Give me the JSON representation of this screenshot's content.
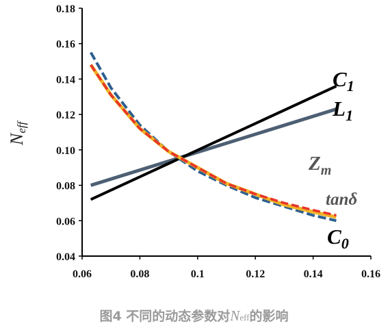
{
  "chart_data": {
    "type": "line",
    "xlim": [
      0.06,
      0.16
    ],
    "ylim": [
      0.04,
      0.18
    ],
    "x_ticks": [
      "0.06",
      "0.08",
      "0.1",
      "0.12",
      "0.14",
      "0.16"
    ],
    "y_ticks": [
      "0.04",
      "0.06",
      "0.08",
      "0.10",
      "0.12",
      "0.14",
      "0.16",
      "0.18"
    ],
    "ylabel": {
      "main": "N",
      "sub": "eff"
    },
    "grid": false,
    "series": [
      {
        "name": "C",
        "sub": "1",
        "color": "#000000",
        "style": "solid",
        "x": [
          0.063,
          0.148
        ],
        "y": [
          0.072,
          0.136
        ]
      },
      {
        "name": "L",
        "sub": "1",
        "color": "#4d5f73",
        "style": "solid",
        "x": [
          0.063,
          0.148
        ],
        "y": [
          0.08,
          0.123
        ]
      },
      {
        "name": "Z",
        "sub": "m",
        "color": "#f0b323",
        "style": "solid",
        "x": [
          0.063,
          0.07,
          0.08,
          0.09,
          0.1,
          0.11,
          0.12,
          0.13,
          0.14,
          0.148
        ],
        "y": [
          0.148,
          0.131,
          0.112,
          0.099,
          0.09,
          0.081,
          0.075,
          0.069,
          0.065,
          0.062
        ]
      },
      {
        "name": "tanδ",
        "sub": "",
        "color": "#e8332a",
        "style": "dashed",
        "x": [
          0.063,
          0.07,
          0.08,
          0.09,
          0.1,
          0.11,
          0.12,
          0.13,
          0.14,
          0.148
        ],
        "y": [
          0.148,
          0.131,
          0.112,
          0.099,
          0.09,
          0.081,
          0.075,
          0.07,
          0.066,
          0.063
        ]
      },
      {
        "name": "C",
        "sub": "0",
        "color": "#2e5f8f",
        "style": "dashed",
        "x": [
          0.063,
          0.07,
          0.08,
          0.09,
          0.1,
          0.11,
          0.12,
          0.13,
          0.14,
          0.148
        ],
        "y": [
          0.155,
          0.135,
          0.114,
          0.099,
          0.088,
          0.08,
          0.073,
          0.068,
          0.063,
          0.06
        ]
      }
    ]
  },
  "caption": {
    "prefix": "图4 不同的动态参数对",
    "var": "N",
    "sub": "eff",
    "suffix": "的影响"
  }
}
